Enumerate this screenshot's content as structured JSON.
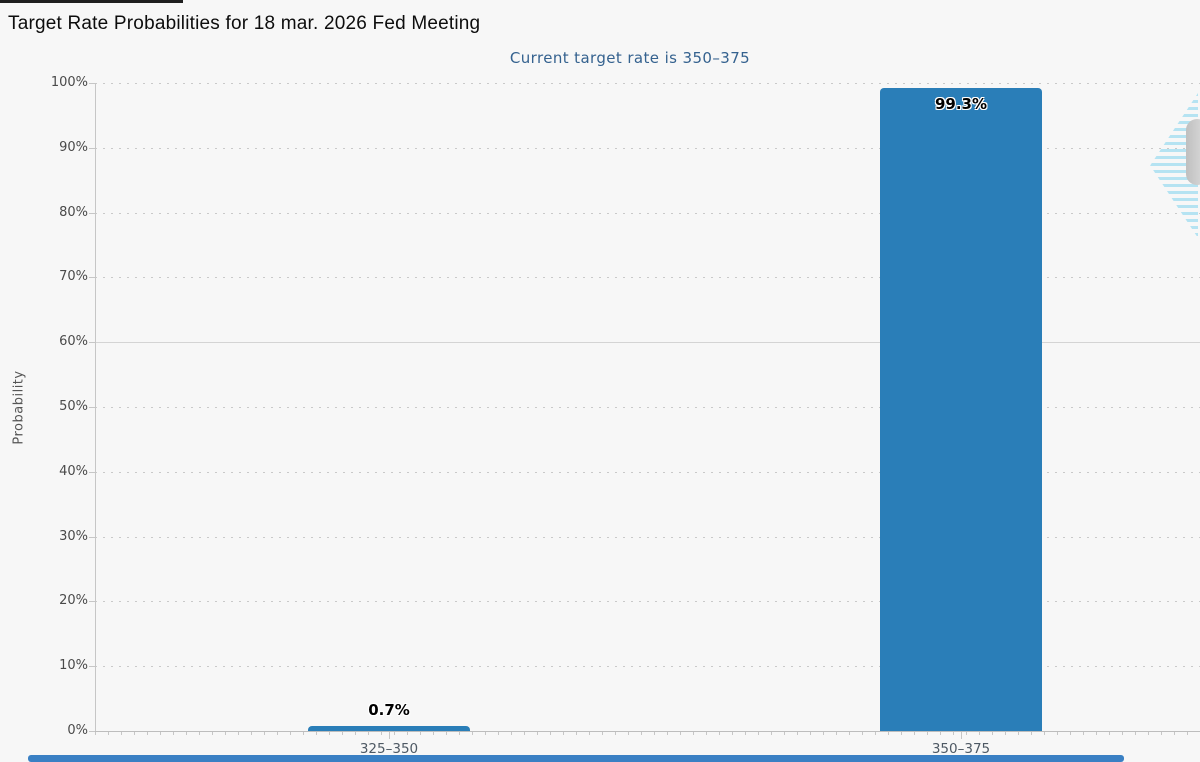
{
  "window": {
    "loading_bar_present": true
  },
  "chart_data": {
    "type": "bar",
    "title": "Target Rate Probabilities for 18 mar. 2026 Fed Meeting",
    "subtitle": "Current target rate is 350–375",
    "categories": [
      "325–350",
      "350–375"
    ],
    "series": [
      {
        "name": "Probability",
        "values": [
          0.7,
          99.3
        ]
      }
    ],
    "value_labels": [
      "0.7%",
      "99.3%"
    ],
    "xlabel": "",
    "ylabel": "Probability",
    "ylim": [
      0,
      100
    ],
    "ytick_step": 10,
    "ytick_labels": [
      "0%",
      "10%",
      "20%",
      "30%",
      "40%",
      "50%",
      "60%",
      "70%",
      "80%",
      "90%",
      "100%"
    ],
    "grid": {
      "style": "dotted-horizontal",
      "solid_levels": [
        60
      ],
      "vertical": false
    },
    "legend": "none"
  },
  "colors": {
    "background": "#f7f7f7",
    "bar": "#2a7eb8",
    "axis": "#c6c6c6",
    "grid_dot": "#c9c9c9",
    "title_text": "#0d0d0d",
    "subtitle_text": "#35628f",
    "tick_text": "#4a4a4a",
    "category_text": "#4e5964",
    "scrollbar_thumb": "#3a80c4",
    "watermark_stripes": "#b5e3f2",
    "watermark_knob": "#c9c9c9",
    "loading_bar": "#1f1f1f"
  },
  "watermark": {
    "name": "cme-logo-partial"
  },
  "scrollbar": {
    "orientation": "horizontal",
    "present": true
  }
}
